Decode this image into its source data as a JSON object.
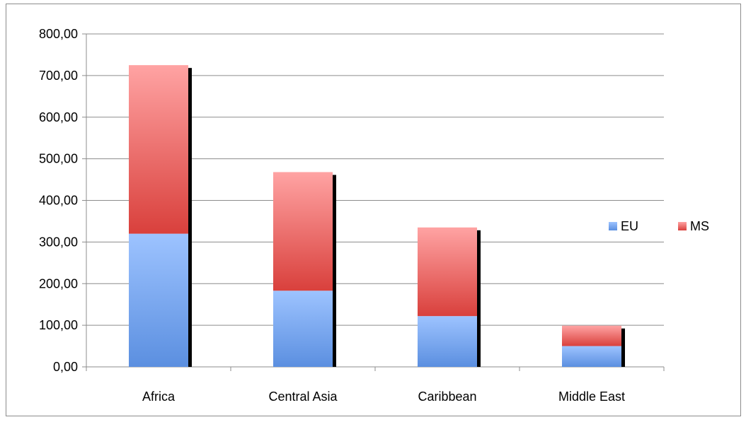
{
  "chart_data": {
    "type": "bar",
    "stacked": true,
    "categories": [
      "Africa",
      "Central Asia",
      "Caribbean",
      "Middle East"
    ],
    "series": [
      {
        "name": "EU",
        "values": [
          320,
          183,
          122,
          50
        ],
        "color": "#5b8fe0",
        "color_light": "#9dc3ff"
      },
      {
        "name": "MS",
        "values": [
          405,
          285,
          213,
          49
        ],
        "color": "#d9403c",
        "color_light": "#ffa3a3"
      }
    ],
    "ylim": [
      0,
      800
    ],
    "yticks": [
      "0,00",
      "100,00",
      "200,00",
      "300,00",
      "400,00",
      "500,00",
      "600,00",
      "700,00",
      "800,00"
    ],
    "grid": true,
    "legend": "right"
  }
}
